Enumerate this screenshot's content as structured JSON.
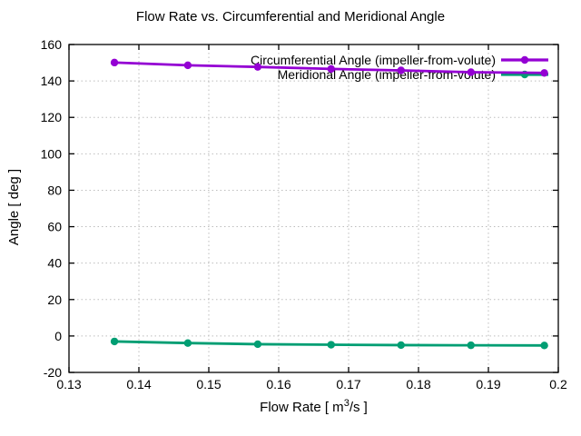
{
  "chart_data": {
    "type": "line",
    "title": "Flow Rate vs. Circumferential and Meridional Angle",
    "ylabel": "Angle [ deg ]",
    "xlabel_prefix": "Flow Rate [ m",
    "xlabel_superscript": "3",
    "xlabel_suffix": "/s ]",
    "xlim": [
      0.13,
      0.2
    ],
    "ylim": [
      -20,
      160
    ],
    "xtick_labels": [
      "0.13",
      "0.14",
      "0.15",
      "0.16",
      "0.17",
      "0.18",
      "0.19",
      "0.2"
    ],
    "ytick_labels": [
      "-20",
      "0",
      "20",
      "40",
      "60",
      "80",
      "100",
      "120",
      "140",
      "160"
    ],
    "grid": "dotted",
    "legend_position": "top-right-inside",
    "x": [
      0.1365,
      0.147,
      0.157,
      0.1675,
      0.1775,
      0.1875,
      0.198
    ],
    "series": [
      {
        "name": "Circumferential Angle (impeller-from-volute)",
        "color": "#9400d3",
        "values": [
          150.1,
          148.6,
          147.7,
          146.6,
          145.8,
          144.8,
          144.4
        ]
      },
      {
        "name": "Meridional Angle (impeller-from-volute)",
        "color": "#009e73",
        "values": [
          -3.0,
          -3.9,
          -4.5,
          -4.8,
          -5.0,
          -5.1,
          -5.2
        ]
      }
    ],
    "colors": {
      "axis": "#000000",
      "grid": "#bdbdbd",
      "background": "#ffffff",
      "text": "#000000"
    }
  }
}
